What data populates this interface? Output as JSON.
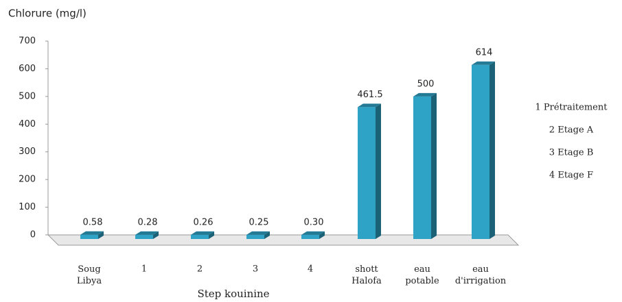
{
  "chart_data": {
    "type": "bar3d",
    "title": "Chlorure (mg/l)",
    "x_label": "Step kouinine",
    "categories": [
      "Soug Libya",
      "1",
      "2",
      "3",
      "4",
      "shott Halofa",
      "eau potable",
      "eau d'irrigation"
    ],
    "values": [
      0.58,
      0.28,
      0.26,
      0.25,
      0.3,
      461.5,
      500,
      614
    ],
    "value_labels": [
      "0.58",
      "0.28",
      "0.26",
      "0.25",
      "0.30",
      "461.5",
      "500",
      "614"
    ],
    "color": "#2ea3c6",
    "ylim": [
      0,
      700
    ],
    "yticks": [
      0,
      100,
      200,
      300,
      400,
      500,
      600,
      700
    ],
    "annotations": [
      "1 Prétraitement",
      "2 Etage A",
      "3 Etage B",
      "4 Etage F"
    ]
  }
}
